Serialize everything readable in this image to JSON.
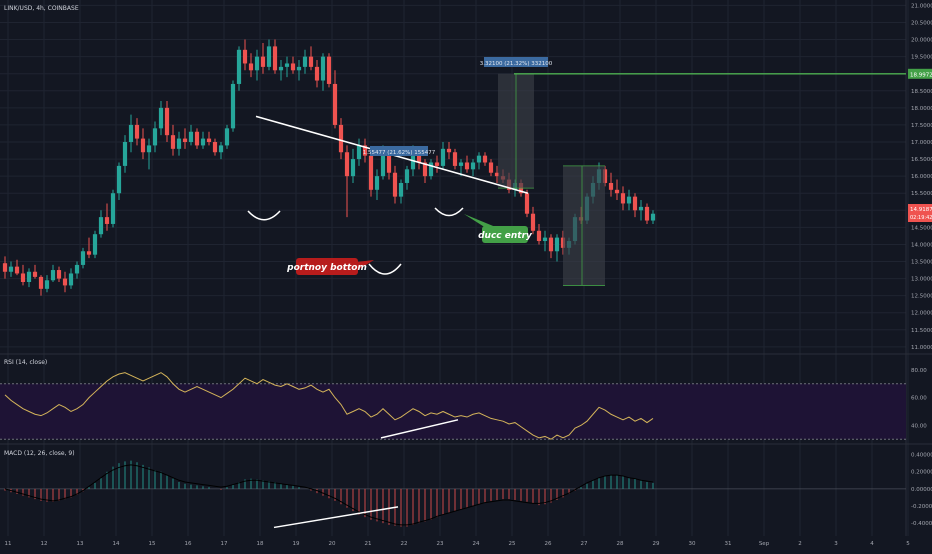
{
  "header": {
    "symbol_text": "LINK/USD, 4h, COINBASE",
    "rsi_title": "RSI (14, close)",
    "macd_title": "MACD (12, 26, close, 9)"
  },
  "colors": {
    "background": "#131722",
    "grid": "#1f2431",
    "axis_text": "#a3a6af",
    "up": "#26a69a",
    "down": "#ef5350",
    "trendline": "#ffffff",
    "target_line": "#4caf50",
    "rsi_line": "#d4b45a",
    "rsi_band": "#1e1335",
    "macd_line": "#2b2f3a",
    "annotation_red": "#b71c1c",
    "annotation_green": "#43a047",
    "price_badge": "#ef5350",
    "target_badge": "#43a047",
    "range_label_bg": "#3b6aa0"
  },
  "annotations": {
    "bottom_label": "portnoy bottom",
    "entry_label": "ducc entry",
    "range_1_label": "1.55477 (21.62%) 155477",
    "range_2_label": "3.32100 (21.32%) 332100",
    "target_price": "18.99726",
    "current_price": "14.91871",
    "countdown": "02:19:42"
  },
  "chart_data": [
    {
      "type": "candlestick",
      "title": "LINK/USD, 4h, COINBASE",
      "x_tick_labels": [
        "11",
        "12",
        "13",
        "14",
        "15",
        "16",
        "17",
        "18",
        "19",
        "20",
        "21",
        "22",
        "23",
        "24",
        "25",
        "26",
        "27",
        "28",
        "29",
        "30",
        "31",
        "Sep",
        "2",
        "3",
        "4",
        "5"
      ],
      "y_tick_labels": [
        "21.00000",
        "20.50000",
        "20.00000",
        "19.50000",
        "19.00000",
        "18.50000",
        "18.00000",
        "17.50000",
        "17.00000",
        "16.50000",
        "16.00000",
        "15.50000",
        "15.00000",
        "14.50000",
        "14.00000",
        "13.50000",
        "13.00000",
        "12.50000",
        "12.00000",
        "11.50000",
        "11.00000"
      ],
      "ylim": [
        10.85,
        21.1
      ],
      "ohlc": [
        [
          13.45,
          13.65,
          13.0,
          13.2
        ],
        [
          13.2,
          13.5,
          13.05,
          13.35
        ],
        [
          13.35,
          13.55,
          13.1,
          13.15
        ],
        [
          13.15,
          13.4,
          12.8,
          12.9
        ],
        [
          12.9,
          13.3,
          12.75,
          13.2
        ],
        [
          13.2,
          13.4,
          13.0,
          13.05
        ],
        [
          13.05,
          13.1,
          12.5,
          12.7
        ],
        [
          12.7,
          13.1,
          12.6,
          12.95
        ],
        [
          12.95,
          13.4,
          12.9,
          13.25
        ],
        [
          13.25,
          13.35,
          12.9,
          13.0
        ],
        [
          13.0,
          13.2,
          12.6,
          12.8
        ],
        [
          12.8,
          13.3,
          12.7,
          13.15
        ],
        [
          13.15,
          13.5,
          13.0,
          13.4
        ],
        [
          13.4,
          13.9,
          13.3,
          13.8
        ],
        [
          13.8,
          14.2,
          13.6,
          13.7
        ],
        [
          13.7,
          14.4,
          13.6,
          14.3
        ],
        [
          14.3,
          15.0,
          14.2,
          14.8
        ],
        [
          14.8,
          15.2,
          14.4,
          14.6
        ],
        [
          14.6,
          15.6,
          14.5,
          15.5
        ],
        [
          15.5,
          16.4,
          15.3,
          16.3
        ],
        [
          16.3,
          17.2,
          16.1,
          17.0
        ],
        [
          17.0,
          17.8,
          16.7,
          17.5
        ],
        [
          17.5,
          17.7,
          16.9,
          17.1
        ],
        [
          17.1,
          17.4,
          16.5,
          16.7
        ],
        [
          16.7,
          17.1,
          16.2,
          16.9
        ],
        [
          16.9,
          17.6,
          16.7,
          17.4
        ],
        [
          17.4,
          18.2,
          17.2,
          18.0
        ],
        [
          18.0,
          18.2,
          17.0,
          17.2
        ],
        [
          17.2,
          17.5,
          16.6,
          16.8
        ],
        [
          16.8,
          17.3,
          16.6,
          17.1
        ],
        [
          17.1,
          17.4,
          16.8,
          17.0
        ],
        [
          17.0,
          17.5,
          16.9,
          17.3
        ],
        [
          17.3,
          17.4,
          16.8,
          16.9
        ],
        [
          16.9,
          17.3,
          16.8,
          17.1
        ],
        [
          17.1,
          17.3,
          16.9,
          17.0
        ],
        [
          17.0,
          17.1,
          16.6,
          16.7
        ],
        [
          16.7,
          17.0,
          16.5,
          16.9
        ],
        [
          16.9,
          17.5,
          16.8,
          17.4
        ],
        [
          17.4,
          18.8,
          17.3,
          18.7
        ],
        [
          18.7,
          19.8,
          18.5,
          19.7
        ],
        [
          19.7,
          20.0,
          19.1,
          19.3
        ],
        [
          19.3,
          19.6,
          18.9,
          19.1
        ],
        [
          19.1,
          19.7,
          18.8,
          19.5
        ],
        [
          19.5,
          19.9,
          19.0,
          19.2
        ],
        [
          19.2,
          20.0,
          19.1,
          19.8
        ],
        [
          19.8,
          20.0,
          19.0,
          19.1
        ],
        [
          19.1,
          19.4,
          18.8,
          19.2
        ],
        [
          19.2,
          19.5,
          18.9,
          19.3
        ],
        [
          19.3,
          19.5,
          19.0,
          19.1
        ],
        [
          19.1,
          19.4,
          18.8,
          19.2
        ],
        [
          19.2,
          19.7,
          19.0,
          19.5
        ],
        [
          19.5,
          19.8,
          19.1,
          19.2
        ],
        [
          19.2,
          19.4,
          18.6,
          18.8
        ],
        [
          18.8,
          19.6,
          18.5,
          19.5
        ],
        [
          19.5,
          19.6,
          18.6,
          18.7
        ],
        [
          18.7,
          19.1,
          17.4,
          17.5
        ],
        [
          17.5,
          17.7,
          16.5,
          16.7
        ],
        [
          16.7,
          16.9,
          14.8,
          16.0
        ],
        [
          16.0,
          16.8,
          15.8,
          16.5
        ],
        [
          16.5,
          17.1,
          16.3,
          16.9
        ],
        [
          16.9,
          17.1,
          16.4,
          16.6
        ],
        [
          16.6,
          16.7,
          15.4,
          15.6
        ],
        [
          15.6,
          16.2,
          15.3,
          16.0
        ],
        [
          16.0,
          16.9,
          15.9,
          16.7
        ],
        [
          16.7,
          16.8,
          15.9,
          16.1
        ],
        [
          16.1,
          16.3,
          15.2,
          15.4
        ],
        [
          15.4,
          15.9,
          15.2,
          15.8
        ],
        [
          15.8,
          16.3,
          15.6,
          16.2
        ],
        [
          16.2,
          16.9,
          16.0,
          16.6
        ],
        [
          16.6,
          16.8,
          16.2,
          16.4
        ],
        [
          16.4,
          16.5,
          15.8,
          16.0
        ],
        [
          16.0,
          16.5,
          15.9,
          16.4
        ],
        [
          16.4,
          16.6,
          16.1,
          16.3
        ],
        [
          16.3,
          17.0,
          16.2,
          16.8
        ],
        [
          16.8,
          17.0,
          16.5,
          16.7
        ],
        [
          16.7,
          16.8,
          16.2,
          16.3
        ],
        [
          16.3,
          16.5,
          16.0,
          16.4
        ],
        [
          16.4,
          16.6,
          16.1,
          16.2
        ],
        [
          16.2,
          16.5,
          16.0,
          16.4
        ],
        [
          16.4,
          16.7,
          16.2,
          16.6
        ],
        [
          16.6,
          16.7,
          16.3,
          16.4
        ],
        [
          16.4,
          16.5,
          16.0,
          16.1
        ],
        [
          16.1,
          16.3,
          15.8,
          16.0
        ],
        [
          16.0,
          16.2,
          15.8,
          15.9
        ],
        [
          15.9,
          16.1,
          15.5,
          15.6
        ],
        [
          15.6,
          15.9,
          15.4,
          15.8
        ],
        [
          15.8,
          15.9,
          15.4,
          15.5
        ],
        [
          15.5,
          15.6,
          14.8,
          14.9
        ],
        [
          14.9,
          15.1,
          14.3,
          14.4
        ],
        [
          14.4,
          14.6,
          14.0,
          14.1
        ],
        [
          14.1,
          14.4,
          13.8,
          14.2
        ],
        [
          14.2,
          14.3,
          13.6,
          13.8
        ],
        [
          13.8,
          14.3,
          13.5,
          14.2
        ],
        [
          14.2,
          14.4,
          13.7,
          13.9
        ],
        [
          13.9,
          14.2,
          13.7,
          14.1
        ],
        [
          14.1,
          14.9,
          14.0,
          14.8
        ],
        [
          14.8,
          15.1,
          14.6,
          14.7
        ],
        [
          14.7,
          15.5,
          14.6,
          15.4
        ],
        [
          15.4,
          16.0,
          15.2,
          15.8
        ],
        [
          15.8,
          16.4,
          15.6,
          16.2
        ],
        [
          16.2,
          16.3,
          15.7,
          15.8
        ],
        [
          15.8,
          16.1,
          15.4,
          15.6
        ],
        [
          15.6,
          15.9,
          15.3,
          15.5
        ],
        [
          15.5,
          15.7,
          15.0,
          15.2
        ],
        [
          15.2,
          15.6,
          15.0,
          15.4
        ],
        [
          15.4,
          15.5,
          14.8,
          15.0
        ],
        [
          15.0,
          15.3,
          14.7,
          15.1
        ],
        [
          15.1,
          15.2,
          14.6,
          14.7
        ],
        [
          14.7,
          15.0,
          14.6,
          14.9
        ]
      ],
      "lines": [
        {
          "name": "resistance trendline",
          "x": [
            "17 18:00",
            "25 20:00"
          ],
          "y": [
            17.75,
            15.5
          ]
        },
        {
          "name": "target",
          "y": 18.99726
        }
      ]
    },
    {
      "type": "line",
      "title": "RSI (14, close)",
      "y_tick_labels": [
        "80.00",
        "60.00",
        "40.00"
      ],
      "ylim": [
        28,
        90
      ],
      "bands": [
        30,
        70
      ],
      "values": [
        62,
        58,
        55,
        52,
        50,
        48,
        47,
        49,
        52,
        55,
        53,
        50,
        52,
        55,
        60,
        64,
        68,
        72,
        75,
        77,
        78,
        76,
        74,
        72,
        74,
        76,
        78,
        75,
        70,
        66,
        64,
        66,
        68,
        66,
        64,
        62,
        60,
        63,
        66,
        70,
        74,
        72,
        70,
        73,
        71,
        69,
        68,
        70,
        68,
        66,
        67,
        69,
        66,
        64,
        66,
        60,
        55,
        48,
        50,
        52,
        50,
        46,
        48,
        52,
        48,
        44,
        46,
        49,
        52,
        50,
        47,
        49,
        48,
        50,
        48,
        46,
        47,
        46,
        48,
        49,
        47,
        45,
        44,
        43,
        41,
        42,
        39,
        36,
        33,
        31,
        32,
        30,
        33,
        31,
        33,
        38,
        40,
        43,
        48,
        53,
        51,
        48,
        46,
        44,
        46,
        43,
        45,
        42,
        45
      ]
    },
    {
      "type": "bar+line",
      "title": "MACD (12, 26, close, 9)",
      "y_tick_labels": [
        "0.40000",
        "0.20000",
        "0.00000",
        "-0.20000",
        "-0.40000"
      ],
      "ylim": [
        -0.55,
        0.5
      ],
      "histogram": [
        -0.02,
        -0.04,
        -0.06,
        -0.08,
        -0.1,
        -0.12,
        -0.14,
        -0.15,
        -0.15,
        -0.14,
        -0.12,
        -0.1,
        -0.07,
        -0.03,
        0.02,
        0.07,
        0.13,
        0.2,
        0.26,
        0.3,
        0.32,
        0.33,
        0.31,
        0.28,
        0.25,
        0.22,
        0.2,
        0.16,
        0.12,
        0.08,
        0.06,
        0.05,
        0.04,
        0.03,
        0.02,
        0.0,
        -0.01,
        0.02,
        0.05,
        0.08,
        0.11,
        0.12,
        0.11,
        0.1,
        0.09,
        0.08,
        0.06,
        0.05,
        0.04,
        0.02,
        0.0,
        -0.02,
        -0.05,
        -0.08,
        -0.11,
        -0.14,
        -0.18,
        -0.22,
        -0.26,
        -0.3,
        -0.33,
        -0.36,
        -0.38,
        -0.4,
        -0.42,
        -0.43,
        -0.44,
        -0.44,
        -0.42,
        -0.4,
        -0.38,
        -0.36,
        -0.33,
        -0.3,
        -0.28,
        -0.26,
        -0.24,
        -0.22,
        -0.2,
        -0.18,
        -0.16,
        -0.14,
        -0.13,
        -0.12,
        -0.12,
        -0.13,
        -0.14,
        -0.15,
        -0.17,
        -0.19,
        -0.18,
        -0.16,
        -0.13,
        -0.1,
        -0.06,
        -0.02,
        0.02,
        0.06,
        0.1,
        0.13,
        0.15,
        0.16,
        0.16,
        0.15,
        0.13,
        0.12,
        0.1,
        0.08,
        0.07
      ],
      "macd": [
        0.0,
        -0.02,
        -0.04,
        -0.06,
        -0.08,
        -0.1,
        -0.12,
        -0.13,
        -0.14,
        -0.13,
        -0.11,
        -0.09,
        -0.06,
        -0.02,
        0.03,
        0.08,
        0.13,
        0.18,
        0.22,
        0.25,
        0.27,
        0.28,
        0.27,
        0.25,
        0.23,
        0.21,
        0.19,
        0.16,
        0.13,
        0.1,
        0.08,
        0.07,
        0.06,
        0.05,
        0.04,
        0.03,
        0.02,
        0.03,
        0.05,
        0.07,
        0.09,
        0.1,
        0.1,
        0.09,
        0.08,
        0.07,
        0.06,
        0.05,
        0.04,
        0.03,
        0.02,
        0.0,
        -0.02,
        -0.05,
        -0.08,
        -0.11,
        -0.15,
        -0.19,
        -0.23,
        -0.27,
        -0.3,
        -0.33,
        -0.35,
        -0.37,
        -0.39,
        -0.41,
        -0.42,
        -0.42,
        -0.41,
        -0.39,
        -0.37,
        -0.35,
        -0.32,
        -0.3,
        -0.28,
        -0.26,
        -0.24,
        -0.22,
        -0.2,
        -0.18,
        -0.16,
        -0.15,
        -0.14,
        -0.13,
        -0.13,
        -0.14,
        -0.15,
        -0.16,
        -0.17,
        -0.17,
        -0.16,
        -0.14,
        -0.11,
        -0.08,
        -0.05,
        -0.01,
        0.03,
        0.07,
        0.1,
        0.13,
        0.15,
        0.16,
        0.16,
        0.15,
        0.13,
        0.12,
        0.1,
        0.09,
        0.08
      ]
    }
  ]
}
